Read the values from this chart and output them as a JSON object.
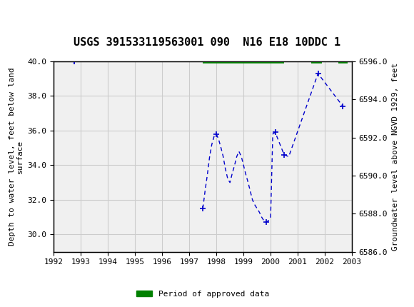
{
  "title": "USGS 391533119563001 090  N16 E18 10DDC 1",
  "ylabel_left": "Depth to water level, feet below land\nsurface",
  "ylabel_right": "Groundwater level above NGVD 1929, feet",
  "ylim_left": [
    40.0,
    29.0
  ],
  "ylim_right": [
    6586.0,
    6596.0
  ],
  "xlim": [
    1992.0,
    2003.0
  ],
  "xticks": [
    1992,
    1993,
    1994,
    1995,
    1996,
    1997,
    1998,
    1999,
    2000,
    2001,
    2002,
    2003
  ],
  "yticks_left": [
    30.0,
    32.0,
    34.0,
    36.0,
    38.0,
    40.0
  ],
  "yticks_right": [
    6586.0,
    6588.0,
    6590.0,
    6592.0,
    6594.0,
    6596.0
  ],
  "line_x": [
    1997.5,
    1997.58,
    1997.67,
    1997.75,
    1997.83,
    1997.92,
    1998.0,
    1998.08,
    1998.17,
    1998.25,
    1998.33,
    1998.42,
    1998.5,
    1998.58,
    1998.67,
    1998.75,
    1998.83,
    1998.92,
    1999.0,
    1999.08,
    1999.17,
    1999.25,
    1999.33,
    1999.42,
    1999.5,
    1999.58,
    1999.67,
    1999.75,
    1999.83,
    1999.92,
    2000.0,
    2000.08,
    2000.17,
    2000.5,
    2000.67,
    2001.75,
    2002.67
  ],
  "line_y": [
    31.5,
    32.5,
    33.5,
    34.5,
    35.2,
    35.7,
    35.8,
    35.5,
    35.0,
    34.5,
    33.8,
    33.2,
    33.0,
    33.5,
    34.0,
    34.5,
    34.8,
    34.5,
    34.0,
    33.5,
    33.0,
    32.5,
    32.0,
    31.7,
    31.5,
    31.3,
    31.0,
    30.8,
    30.7,
    30.8,
    31.0,
    35.8,
    35.9,
    34.6,
    34.5,
    39.3,
    37.4
  ],
  "isolated_x": [
    1992.75
  ],
  "isolated_y": [
    40.0
  ],
  "data_points_x": [
    1992.75,
    1997.5,
    1998.0,
    1999.83,
    2000.17,
    2000.5,
    2001.75,
    2002.67
  ],
  "data_points_y": [
    40.0,
    31.5,
    35.8,
    30.7,
    35.9,
    34.6,
    39.3,
    37.4
  ],
  "approved_bars": [
    {
      "x_start": 1997.5,
      "x_end": 2000.5,
      "y": 40.0
    },
    {
      "x_start": 2001.5,
      "x_end": 2001.9,
      "y": 40.0
    },
    {
      "x_start": 2002.5,
      "x_end": 2002.85,
      "y": 40.0
    }
  ],
  "line_color": "#0000CC",
  "point_color": "#0000CC",
  "approved_color": "#008000",
  "header_bg_color": "#006040",
  "background_color": "#ffffff",
  "plot_bg_color": "#f0f0f0",
  "grid_color": "#cccccc"
}
